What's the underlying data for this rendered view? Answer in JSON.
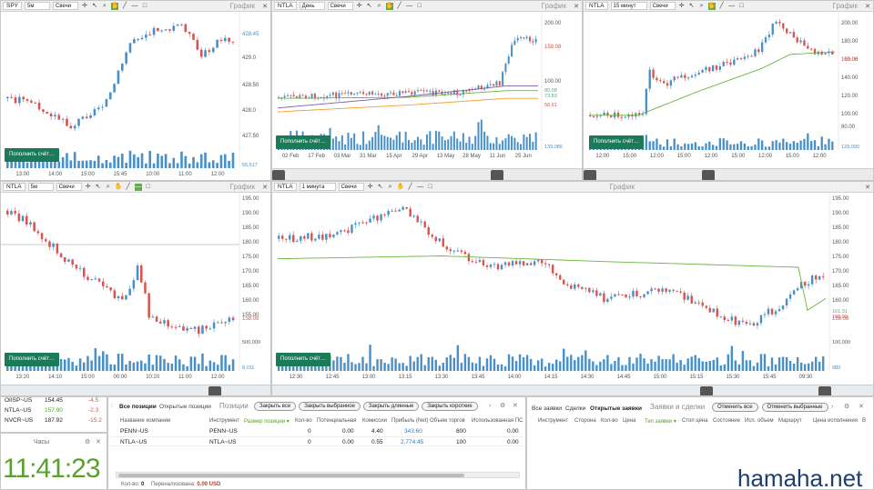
{
  "panels": [
    {
      "symbol": "SPY",
      "timeframe": "5м",
      "type": "Свечи",
      "title": "График",
      "prices": [
        "429.0",
        "428.50",
        "428.0",
        "427.50"
      ],
      "price_current": "428.45",
      "times": [
        "13:00",
        "14:00",
        "15:00",
        "15:45",
        "10:00",
        "11:00",
        "12:00"
      ],
      "volume": "55,517"
    },
    {
      "symbol": "NTLA",
      "timeframe": "День",
      "type": "Свечи",
      "title": "График",
      "prices": [
        "200.00",
        "100.00"
      ],
      "price_current": "158.08",
      "prices_extra": [
        "80.08",
        "73.83",
        "58.61"
      ],
      "times": [
        "02 Feb",
        "17 Feb",
        "03 Mar",
        "31 Mar",
        "15 Apr",
        "29 Apr",
        "13 May",
        "28 May",
        "11 Jun",
        "25 Jun"
      ],
      "volume": "139,086"
    },
    {
      "symbol": "NTLA",
      "timeframe": "15 минут",
      "type": "Свечи",
      "title": "График",
      "prices": [
        "200.00",
        "180.00",
        "160.00",
        "140.00",
        "120.00",
        "100.00",
        "80.00"
      ],
      "price_current": "158.08",
      "times": [
        "12:00",
        "15:00",
        "12:00",
        "15:00",
        "12:00",
        "15:00",
        "12:00",
        "15:00",
        "12:00"
      ],
      "volume": "139,090"
    },
    {
      "symbol": "NTLA",
      "timeframe": "5м",
      "type": "Свечи",
      "title": "График",
      "prices": [
        "195.00",
        "190.00",
        "185.00",
        "180.00",
        "175.00",
        "170.00",
        "165.00",
        "160.00",
        "155.00"
      ],
      "price_current": "158.08",
      "times": [
        "13:20",
        "14:10",
        "15:00",
        "00:00",
        "10:20",
        "11:00",
        "12:00"
      ],
      "volume_top": "500,000",
      "volume": "8,011"
    },
    {
      "symbol": "NTLA",
      "timeframe": "1 минута",
      "type": "Свечи",
      "title": "График",
      "prices": [
        "195.00",
        "190.00",
        "185.00",
        "180.00",
        "175.00",
        "170.00",
        "165.00",
        "160.00"
      ],
      "price_current": "158.08",
      "prices_extra": [
        "161.31",
        "160.00"
      ],
      "times": [
        "12:30",
        "12:45",
        "13:00",
        "13:15",
        "13:30",
        "13:45",
        "14:00",
        "14:15",
        "14:30",
        "14:45",
        "15:00",
        "15:15",
        "15:30",
        "15:45",
        "09:30"
      ],
      "volume_top": "100,000",
      "volume": "980"
    }
  ],
  "deposit_label": "Пополнить счёт…",
  "watchlist": [
    {
      "symbol": "OIISP~US",
      "price": "154.45",
      "change": "-4.5"
    },
    {
      "symbol": "NTLA~US",
      "price": "157.90",
      "change": "-2.3"
    },
    {
      "symbol": "NVCR~US",
      "price": "187.92",
      "change": "-15.2"
    }
  ],
  "clock": {
    "title": "Часы",
    "time": "11:41:23"
  },
  "positions": {
    "tab_all": "Все позиции",
    "tab_open": "Открытые позиции",
    "title": "Позиции",
    "buttons": [
      "Закрыть все",
      "Закрыть выбранное",
      "Закрыть длинные",
      "Закрыть короткие"
    ],
    "columns": [
      "Название компании",
      "Инструмент",
      "Размер позиции ▾",
      "Кол-во",
      "Потенциальная",
      "Комиссии",
      "Прибыль (Net)",
      "Объем торгов",
      "Использованная ПС"
    ],
    "rows": [
      {
        "name": "PENN~US",
        "instrument": "PENN~US",
        "size": "",
        "qty": "0",
        "potential": "0.00",
        "fees": "4.40",
        "profit": "343.60",
        "volume": "800",
        "used": "0.00"
      },
      {
        "name": "NTLA~US",
        "instrument": "NTLA~US",
        "size": "",
        "qty": "0",
        "potential": "0.00",
        "fees": "0.55",
        "profit": "2,774.45",
        "volume": "100",
        "used": "0.00"
      }
    ],
    "footer_qty_label": "Кол-во:",
    "footer_qty": "0",
    "footer_over_label": "Перенализована:",
    "footer_over": "0.00 USD"
  },
  "orders": {
    "tab_all": "Все заявки",
    "tab_deals": "Сделки",
    "tab_open": "Открытые заявки",
    "title": "Заявки и сделки",
    "buttons": [
      "Отменить все",
      "Отменить выбранные"
    ],
    "columns": [
      "Инструмент",
      "Сторона",
      "Кол-во",
      "Цена",
      "Тип заявки ▾",
      "Стоп цена",
      "Состояние",
      "Исп. объем",
      "Маршрут",
      "Цена исполнения",
      "В"
    ]
  },
  "watermark": "hamaha.net",
  "colors": {
    "up": "#4a90c8",
    "down": "#d9534f",
    "ma_green": "#6db33f",
    "ma_orange": "#f0a030",
    "ma_purple": "#7b5ea7",
    "deposit": "#1b7a58",
    "clock": "#5aa02c",
    "profit": "#2a7fd4"
  }
}
